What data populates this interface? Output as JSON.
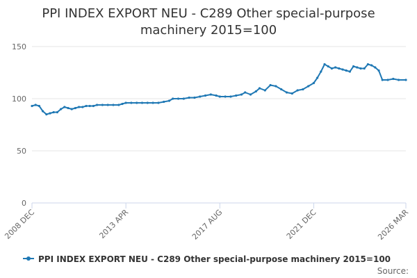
{
  "chart_data": {
    "type": "line",
    "title_lines": [
      "PPI INDEX EXPORT NEU - C289 Other special-purpose",
      "machinery 2015=100"
    ],
    "xlabel": "",
    "ylabel": "",
    "ylim": [
      0,
      150
    ],
    "y_ticks": [
      0,
      50,
      100,
      150
    ],
    "x_range": [
      "2008-12",
      "2026-03"
    ],
    "x_tick_labels": [
      {
        "label": "2008 DEC",
        "date": "2008-12"
      },
      {
        "label": "2013 APR",
        "date": "2013-04"
      },
      {
        "label": "2017 AUG",
        "date": "2017-08"
      },
      {
        "label": "2021 DEC",
        "date": "2021-12"
      },
      {
        "label": "2026 MAR",
        "date": "2026-03"
      }
    ],
    "grid": true,
    "legend_position": "bottom",
    "series": [
      {
        "name": "PPI INDEX EXPORT NEU - C289 Other special-purpose machinery 2015=100",
        "color": "#1f78b4",
        "points": [
          [
            "2008-12",
            93
          ],
          [
            "2009-02",
            94
          ],
          [
            "2009-04",
            93
          ],
          [
            "2009-06",
            88
          ],
          [
            "2009-08",
            85
          ],
          [
            "2009-10",
            86
          ],
          [
            "2009-12",
            87
          ],
          [
            "2010-02",
            87
          ],
          [
            "2010-04",
            90
          ],
          [
            "2010-06",
            92
          ],
          [
            "2010-08",
            91
          ],
          [
            "2010-10",
            90
          ],
          [
            "2010-12",
            91
          ],
          [
            "2011-02",
            92
          ],
          [
            "2011-04",
            92
          ],
          [
            "2011-06",
            93
          ],
          [
            "2011-08",
            93
          ],
          [
            "2011-10",
            93
          ],
          [
            "2011-12",
            94
          ],
          [
            "2012-03",
            94
          ],
          [
            "2012-06",
            94
          ],
          [
            "2012-09",
            94
          ],
          [
            "2012-12",
            94
          ],
          [
            "2013-02",
            95
          ],
          [
            "2013-04",
            96
          ],
          [
            "2013-07",
            96
          ],
          [
            "2013-10",
            96
          ],
          [
            "2014-01",
            96
          ],
          [
            "2014-04",
            96
          ],
          [
            "2014-07",
            96
          ],
          [
            "2014-10",
            96
          ],
          [
            "2015-01",
            97
          ],
          [
            "2015-04",
            98
          ],
          [
            "2015-06",
            100
          ],
          [
            "2015-09",
            100
          ],
          [
            "2015-12",
            100
          ],
          [
            "2016-03",
            101
          ],
          [
            "2016-06",
            101
          ],
          [
            "2016-09",
            102
          ],
          [
            "2016-12",
            103
          ],
          [
            "2017-03",
            104
          ],
          [
            "2017-06",
            103
          ],
          [
            "2017-08",
            102
          ],
          [
            "2017-11",
            102
          ],
          [
            "2018-02",
            102
          ],
          [
            "2018-05",
            103
          ],
          [
            "2018-08",
            104
          ],
          [
            "2018-10",
            106
          ],
          [
            "2019-01",
            104
          ],
          [
            "2019-04",
            107
          ],
          [
            "2019-06",
            110
          ],
          [
            "2019-09",
            108
          ],
          [
            "2019-12",
            113
          ],
          [
            "2020-03",
            112
          ],
          [
            "2020-06",
            109
          ],
          [
            "2020-09",
            106
          ],
          [
            "2020-12",
            105
          ],
          [
            "2021-03",
            108
          ],
          [
            "2021-06",
            109
          ],
          [
            "2021-09",
            112
          ],
          [
            "2021-12",
            115
          ],
          [
            "2022-02",
            120
          ],
          [
            "2022-04",
            126
          ],
          [
            "2022-06",
            133
          ],
          [
            "2022-08",
            131
          ],
          [
            "2022-10",
            129
          ],
          [
            "2022-12",
            130
          ],
          [
            "2023-02",
            129
          ],
          [
            "2023-04",
            128
          ],
          [
            "2023-06",
            127
          ],
          [
            "2023-08",
            126
          ],
          [
            "2023-10",
            131
          ],
          [
            "2023-12",
            130
          ],
          [
            "2024-02",
            129
          ],
          [
            "2024-04",
            129
          ],
          [
            "2024-06",
            133
          ],
          [
            "2024-08",
            132
          ],
          [
            "2024-10",
            130
          ],
          [
            "2024-12",
            127
          ],
          [
            "2025-02",
            118
          ],
          [
            "2025-05",
            118
          ],
          [
            "2025-08",
            119
          ],
          [
            "2025-11",
            118
          ],
          [
            "2026-03",
            118
          ]
        ]
      }
    ]
  },
  "source_label": "Source:"
}
